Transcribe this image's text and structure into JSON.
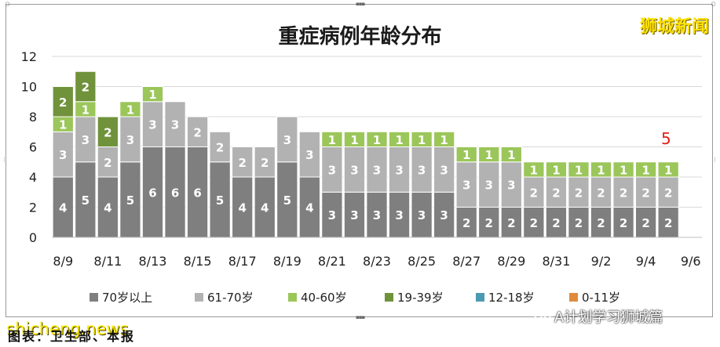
{
  "brand_logo": "狮城新闻",
  "watermark": {
    "site": "shicheng.news",
    "account": "A计划学习狮城篇"
  },
  "caption": "图表：卫生部、本报",
  "highlight_value": "5",
  "colors": {
    "70+": "#7f7f7f",
    "61-70": "#b2b2b2",
    "40-60": "#9bc65a",
    "19-39": "#70923b",
    "12-18": "#4a9bb1",
    "0-11": "#e08a3c"
  },
  "chart_data": {
    "type": "bar",
    "stacked": true,
    "title": "重症病例年龄分布",
    "xlabel": "",
    "ylabel": "",
    "ylim": [
      0,
      12
    ],
    "yticks": [
      0,
      2,
      4,
      6,
      8,
      10,
      12
    ],
    "grid": true,
    "legend_position": "bottom",
    "categories": [
      "8/9",
      "8/10",
      "8/11",
      "8/12",
      "8/13",
      "8/14",
      "8/15",
      "8/16",
      "8/17",
      "8/18",
      "8/19",
      "8/20",
      "8/21",
      "8/22",
      "8/23",
      "8/24",
      "8/25",
      "8/26",
      "8/27",
      "8/28",
      "8/29",
      "8/30",
      "8/31",
      "9/1",
      "9/2",
      "9/3",
      "9/4",
      "9/5",
      "9/6"
    ],
    "tick_labels": [
      "8/9",
      "8/11",
      "8/13",
      "8/15",
      "8/17",
      "8/19",
      "8/21",
      "8/23",
      "8/25",
      "8/27",
      "8/29",
      "8/31",
      "9/2",
      "9/4",
      "9/6"
    ],
    "series": [
      {
        "name": "70岁以上",
        "values": [
          4,
          5,
          4,
          5,
          6,
          6,
          6,
          5,
          4,
          4,
          5,
          4,
          3,
          3,
          3,
          3,
          3,
          3,
          2,
          2,
          2,
          2,
          2,
          2,
          2,
          2,
          2,
          2,
          0
        ]
      },
      {
        "name": "61-70岁",
        "values": [
          3,
          3,
          2,
          3,
          3,
          3,
          2,
          2,
          2,
          2,
          3,
          3,
          3,
          3,
          3,
          3,
          3,
          3,
          3,
          3,
          3,
          2,
          2,
          2,
          2,
          2,
          2,
          2,
          0
        ]
      },
      {
        "name": "40-60岁",
        "values": [
          1,
          1,
          0,
          1,
          1,
          0,
          0,
          0,
          0,
          0,
          0,
          0,
          1,
          1,
          1,
          1,
          1,
          1,
          1,
          1,
          1,
          1,
          1,
          1,
          1,
          1,
          1,
          1,
          0
        ]
      },
      {
        "name": "19-39岁",
        "values": [
          2,
          2,
          2,
          0,
          0,
          0,
          0,
          0,
          0,
          0,
          0,
          0,
          0,
          0,
          0,
          0,
          0,
          0,
          0,
          0,
          0,
          0,
          0,
          0,
          0,
          0,
          0,
          0,
          0
        ]
      },
      {
        "name": "12-18岁",
        "values": [
          0,
          0,
          0,
          0,
          0,
          0,
          0,
          0,
          0,
          0,
          0,
          0,
          0,
          0,
          0,
          0,
          0,
          0,
          0,
          0,
          0,
          0,
          0,
          0,
          0,
          0,
          0,
          0,
          0
        ]
      },
      {
        "name": "0-11岁",
        "values": [
          0,
          0,
          0,
          0,
          0,
          0,
          0,
          0,
          0,
          0,
          0,
          0,
          0,
          0,
          0,
          0,
          0,
          0,
          0,
          0,
          0,
          0,
          0,
          0,
          0,
          0,
          0,
          0,
          0
        ]
      }
    ]
  }
}
